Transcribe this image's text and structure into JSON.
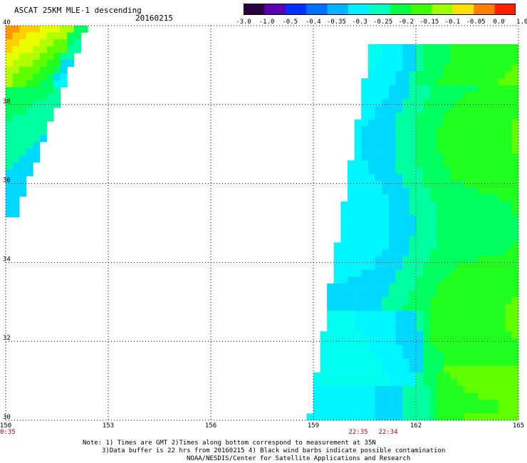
{
  "header": {
    "title": "ASCAT 25KM MLE-1 descending",
    "date": "20160215"
  },
  "colorbar": {
    "labels": [
      "-3.0",
      "-1.0",
      "-0.5",
      "-0.4",
      "-0.35",
      "-0.3",
      "-0.25",
      "-0.2",
      "-0.15",
      "-0.1",
      "-0.05",
      "0.0",
      "1.0"
    ],
    "colors": [
      "#2a0040",
      "#5a00b0",
      "#0030ff",
      "#0070ff",
      "#00b4ff",
      "#00f0ff",
      "#00ffc0",
      "#00ff40",
      "#40ff00",
      "#a0ff00",
      "#ffe000",
      "#ff8000",
      "#ff2000"
    ]
  },
  "map": {
    "lon_ticks": [
      "150",
      "153",
      "156",
      "159",
      "162",
      "165"
    ],
    "lat_ticks": [
      "30",
      "32",
      "34",
      "36",
      "38",
      "40"
    ],
    "lon_range": [
      150,
      165
    ],
    "lat_range": [
      30,
      40
    ],
    "time_labels": [
      "0:35",
      "22:35",
      "22:34"
    ]
  },
  "notes": {
    "line1": "Note: 1) Times are GMT 2)Times along bottom correspond to measurement at 35N",
    "line2": "3)Data buffer is 22 hrs from 20160215 4) Black wind barbs indicate possible contamination",
    "line3": "NOAA/NESDIS/Center for Satellite Applications and Research"
  }
}
